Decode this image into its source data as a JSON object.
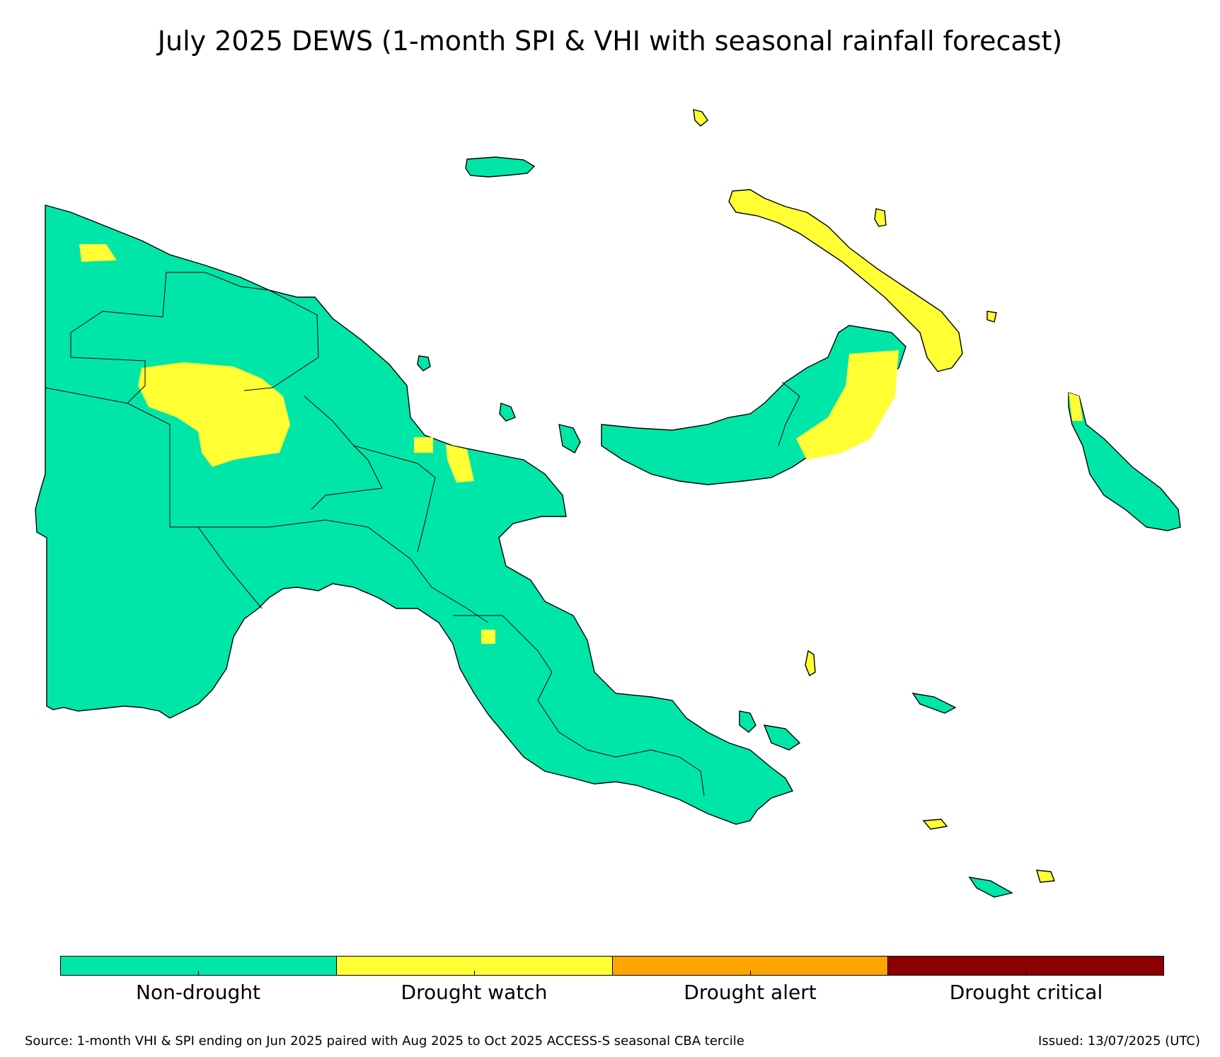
{
  "title": "July 2025 DEWS (1-month SPI & VHI with seasonal rainfall forecast)",
  "colors": {
    "non_drought": "#00e6a8",
    "drought_watch": "#ffff33",
    "drought_alert": "#ffa500",
    "drought_critical": "#8b0000",
    "border": "#000000"
  },
  "legend": {
    "items": [
      {
        "label": "Non-drought",
        "color": "#00e6a8"
      },
      {
        "label": "Drought watch",
        "color": "#ffff33"
      },
      {
        "label": "Drought alert",
        "color": "#ffa500"
      },
      {
        "label": "Drought critical",
        "color": "#8b0000"
      }
    ]
  },
  "footer": {
    "source": "Source: 1-month VHI & SPI ending on Jun 2025 paired with Aug 2025 to Oct 2025 ACCESS-S seasonal CBA tercile",
    "issued": "Issued: 13/07/2025 (UTC)"
  }
}
